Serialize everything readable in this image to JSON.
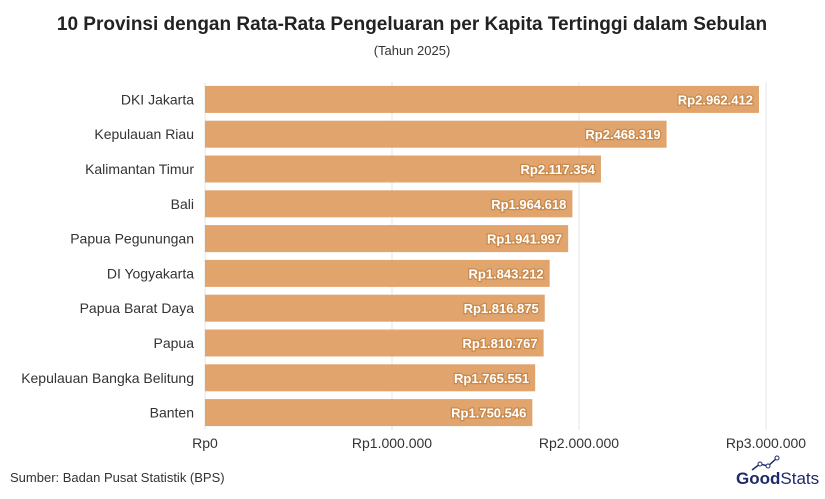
{
  "chart_data": {
    "type": "bar",
    "orientation": "horizontal",
    "title": "10 Provinsi dengan Rata-Rata Pengeluaran per Kapita Tertinggi dalam Sebulan",
    "subtitle": "(Tahun 2025)",
    "categories": [
      "DKI Jakarta",
      "Kepulauan Riau",
      "Kalimantan Timur",
      "Bali",
      "Papua Pegunungan",
      "DI Yogyakarta",
      "Papua Barat Daya",
      "Papua",
      "Kepulauan Bangka Belitung",
      "Banten"
    ],
    "values": [
      2962412,
      2468319,
      2117354,
      1964618,
      1941997,
      1843212,
      1816875,
      1810767,
      1765551,
      1750546
    ],
    "data_labels": [
      "Rp2.962.412",
      "Rp2.468.319",
      "Rp2.117.354",
      "Rp1.964.618",
      "Rp1.941.997",
      "Rp1.843.212",
      "Rp1.816.875",
      "Rp1.810.767",
      "Rp1.765.551",
      "Rp1.750.546"
    ],
    "xlim": [
      0,
      3000000
    ],
    "x_ticks": [
      0,
      1000000,
      2000000,
      3000000
    ],
    "x_tick_labels": [
      "Rp0",
      "Rp1.000.000",
      "Rp2.000.000",
      "Rp3.000.000"
    ],
    "grid": "vertical",
    "bar_color": "#e0a46c",
    "xlabel": "",
    "ylabel": ""
  },
  "footer": {
    "source": "Sumber: Badan Pusat Statistik (BPS)",
    "logo": "GoodStats"
  }
}
